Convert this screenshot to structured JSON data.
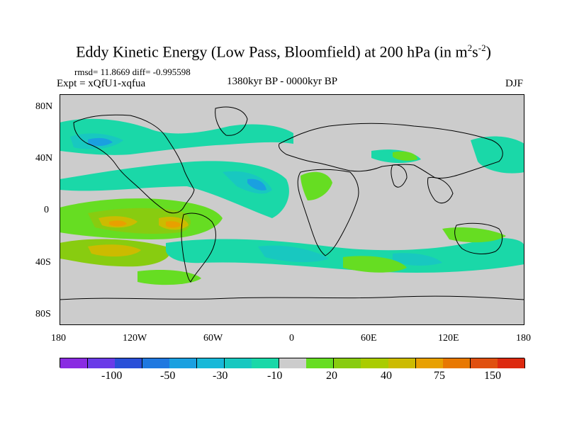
{
  "title": {
    "main": "Eddy Kinetic Energy (Low Pass, Bloomfield) at 200 hPa (in m",
    "sup1": "2",
    "mid": "s",
    "sup2": "-2",
    "end": ")"
  },
  "stats": "rmsd= 11.8669 diff= -0.995598",
  "expt": "Expt = xQfU1-xqfua",
  "period": "1380kyr BP - 0000kyr BP",
  "season": "DJF",
  "y_axis": {
    "ticks": [
      "80N",
      "40N",
      "0",
      "40S",
      "80S"
    ]
  },
  "x_axis": {
    "ticks": [
      "180",
      "120W",
      "60W",
      "0",
      "60E",
      "120E",
      "180"
    ]
  },
  "colorbar": {
    "colors": [
      "#8a2be2",
      "#6a3be8",
      "#2a4fd8",
      "#1f78e0",
      "#1aa0e0",
      "#18b8d8",
      "#18c8c0",
      "#1ad8a8",
      "#cccccc",
      "#66dd22",
      "#88cc10",
      "#aacc00",
      "#ccbb00",
      "#e8a000",
      "#e87800",
      "#e05010",
      "#dd2a10"
    ],
    "labels": [
      "-100",
      "-50",
      "-30",
      "-10",
      "20",
      "40",
      "75",
      "150"
    ]
  },
  "map": {
    "background": "#cccccc",
    "land_outline": "#000000"
  }
}
